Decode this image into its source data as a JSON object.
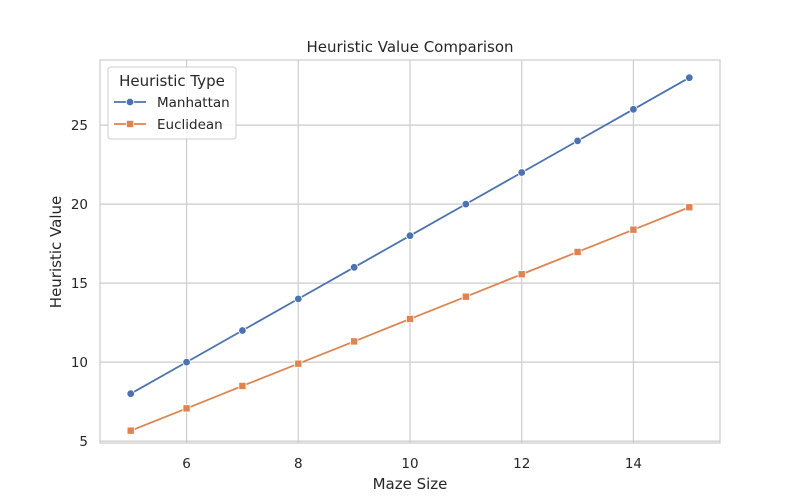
{
  "chart_data": {
    "type": "line",
    "title": "Heuristic Value Comparison",
    "xlabel": "Maze Size",
    "ylabel": "Heuristic Value",
    "xlim": [
      4.45,
      15.55
    ],
    "ylim": [
      4.88,
      29.12
    ],
    "xticks": [
      6,
      8,
      10,
      12,
      14
    ],
    "yticks": [
      5,
      10,
      15,
      20,
      25
    ],
    "grid": true,
    "legend": {
      "title": "Heuristic Type",
      "placement": "top-left"
    },
    "x": [
      5,
      6,
      7,
      8,
      9,
      10,
      11,
      12,
      13,
      14,
      15
    ],
    "series": [
      {
        "name": "Manhattan",
        "marker": "circle",
        "color": "#4c72b0",
        "values": [
          8,
          10,
          12,
          14,
          16,
          18,
          20,
          22,
          24,
          26,
          28
        ]
      },
      {
        "name": "Euclidean",
        "marker": "square",
        "color": "#dd8452",
        "values": [
          5.66,
          7.07,
          8.49,
          9.9,
          11.31,
          12.73,
          14.14,
          15.56,
          16.97,
          18.38,
          19.8
        ]
      }
    ]
  }
}
